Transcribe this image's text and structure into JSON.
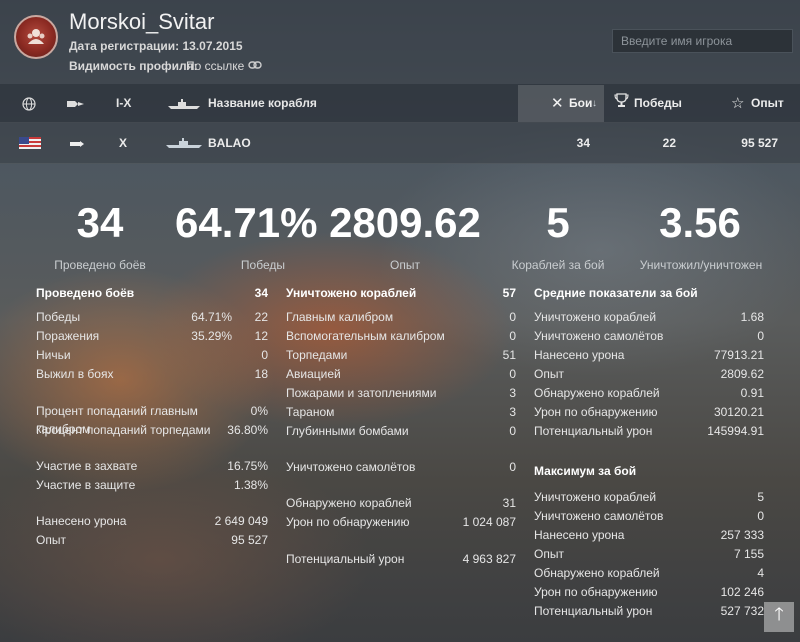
{
  "header": {
    "player_name": "Morskoi_Svitar",
    "reg_date": "Дата регистрации: 13.07.2015",
    "visibility_label": "Видимость профиля:",
    "visibility_value": "По ссылке",
    "search_placeholder": "Введите имя игрока"
  },
  "columns": {
    "tier": "I-X",
    "ship_name": "Название корабля",
    "battles": "Бои",
    "wins": "Победы",
    "exp": "Опыт"
  },
  "ship_row": {
    "tier": "X",
    "name": "BALAO",
    "battles": "34",
    "wins": "22",
    "exp": "95 527"
  },
  "big_stats": [
    {
      "value": "34",
      "caption": "Проведено боёв"
    },
    {
      "value": "64.71%",
      "caption": "Победы"
    },
    {
      "value": "2809.62",
      "caption": "Опыт"
    },
    {
      "value": "5",
      "caption": "Кораблей за бой"
    },
    {
      "value": "3.56",
      "caption": "Уничтожил/уничтожен"
    }
  ],
  "left": {
    "title": "Проведено боёв",
    "title_value": "34",
    "rows": [
      {
        "label": "Победы",
        "pct": "64.71%",
        "value": "22"
      },
      {
        "label": "Поражения",
        "pct": "35.29%",
        "value": "12"
      },
      {
        "label": "Ничьи",
        "pct": "",
        "value": "0"
      },
      {
        "label": "Выжил в боях",
        "pct": "",
        "value": "18"
      },
      {
        "label": "Процент попаданий главным калибром",
        "pct": "",
        "value": "0%"
      },
      {
        "label": "Процент попаданий торпедами",
        "pct": "",
        "value": "36.80%"
      },
      {
        "label": "Участие в захвате",
        "pct": "",
        "value": "16.75%"
      },
      {
        "label": "Участие в защите",
        "pct": "",
        "value": "1.38%"
      },
      {
        "label": "Нанесено урона",
        "pct": "",
        "value": "2 649 049"
      },
      {
        "label": "Опыт",
        "pct": "",
        "value": "95 527"
      }
    ]
  },
  "middle": {
    "title": "Уничтожено кораблей",
    "title_value": "57",
    "rows": [
      {
        "label": "Главным калибром",
        "value": "0"
      },
      {
        "label": "Вспомогательным калибром",
        "value": "0"
      },
      {
        "label": "Торпедами",
        "value": "51"
      },
      {
        "label": "Авиацией",
        "value": "0"
      },
      {
        "label": "Пожарами и затоплениями",
        "value": "3"
      },
      {
        "label": "Тараном",
        "value": "3"
      },
      {
        "label": "Глубинными бомбами",
        "value": "0"
      },
      {
        "label": "Уничтожено самолётов",
        "value": "0"
      },
      {
        "label": "Обнаружено кораблей",
        "value": "31"
      },
      {
        "label": "Урон по обнаружению",
        "value": "1 024 087"
      },
      {
        "label": "Потенциальный урон",
        "value": "4 963 827"
      }
    ]
  },
  "right_avg": {
    "title": "Средние показатели за бой",
    "rows": [
      {
        "label": "Уничтожено кораблей",
        "value": "1.68"
      },
      {
        "label": "Уничтожено самолётов",
        "value": "0"
      },
      {
        "label": "Нанесено урона",
        "value": "77913.21"
      },
      {
        "label": "Опыт",
        "value": "2809.62"
      },
      {
        "label": "Обнаружено кораблей",
        "value": "0.91"
      },
      {
        "label": "Урон по обнаружению",
        "value": "30120.21"
      },
      {
        "label": "Потенциальный урон",
        "value": "145994.91"
      }
    ]
  },
  "right_max": {
    "title": "Максимум за бой",
    "rows": [
      {
        "label": "Уничтожено кораблей",
        "value": "5"
      },
      {
        "label": "Уничтожено самолётов",
        "value": "0"
      },
      {
        "label": "Нанесено урона",
        "value": "257 333"
      },
      {
        "label": "Опыт",
        "value": "7 155"
      },
      {
        "label": "Обнаружено кораблей",
        "value": "4"
      },
      {
        "label": "Урон по обнаружению",
        "value": "102 246"
      },
      {
        "label": "Потенциальный урон",
        "value": "527 732"
      }
    ]
  },
  "icons": [
    "emblem-icon",
    "link-icon",
    "globe-icon",
    "ship-type-icon",
    "ship-icon",
    "close-sort-icon",
    "sort-down-icon",
    "trophy-icon",
    "star-icon",
    "flag-usa-icon",
    "submarine-class-icon",
    "ship-silhouette-icon",
    "arrow-up-icon"
  ]
}
